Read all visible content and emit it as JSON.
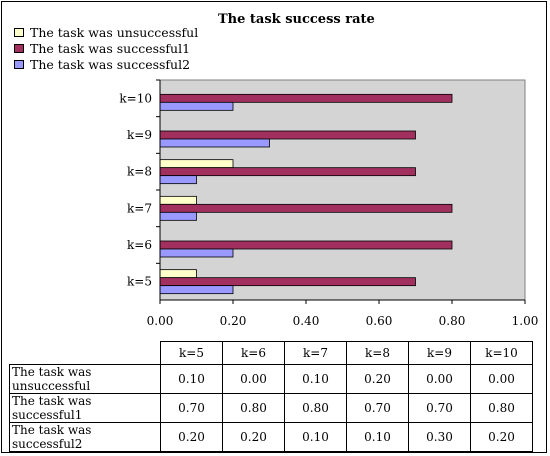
{
  "chart_data": {
    "type": "bar",
    "orientation": "horizontal",
    "title": "The task success rate",
    "categories": [
      "k=5",
      "k=6",
      "k=7",
      "k=8",
      "k=9",
      "k=10"
    ],
    "series": [
      {
        "name": "The task was unsuccessful",
        "values": [
          0.1,
          0.0,
          0.1,
          0.2,
          0.0,
          0.0
        ],
        "color": "#ffffcc"
      },
      {
        "name": "The task was successful1",
        "values": [
          0.7,
          0.8,
          0.8,
          0.7,
          0.7,
          0.8
        ],
        "color": "#a1305f"
      },
      {
        "name": "The task was successful2",
        "values": [
          0.2,
          0.2,
          0.1,
          0.1,
          0.3,
          0.2
        ],
        "color": "#9999ff"
      }
    ],
    "xlim": [
      0,
      1
    ],
    "xticks": [
      "0.00",
      "0.20",
      "0.40",
      "0.60",
      "0.80",
      "1.00"
    ],
    "legend_position": "top-left",
    "plot_background": "#d4d4d4",
    "grid": false
  },
  "table": {
    "columns": [
      "k=5",
      "k=6",
      "k=7",
      "k=8",
      "k=9",
      "k=10"
    ],
    "rows": [
      {
        "label": "The task was unsuccessful",
        "values": [
          "0.10",
          "0.00",
          "0.10",
          "0.20",
          "0.00",
          "0.00"
        ]
      },
      {
        "label": "The task was successful1",
        "values": [
          "0.70",
          "0.80",
          "0.80",
          "0.70",
          "0.70",
          "0.80"
        ]
      },
      {
        "label": "The task was successful2",
        "values": [
          "0.20",
          "0.20",
          "0.10",
          "0.10",
          "0.30",
          "0.20"
        ]
      }
    ]
  }
}
